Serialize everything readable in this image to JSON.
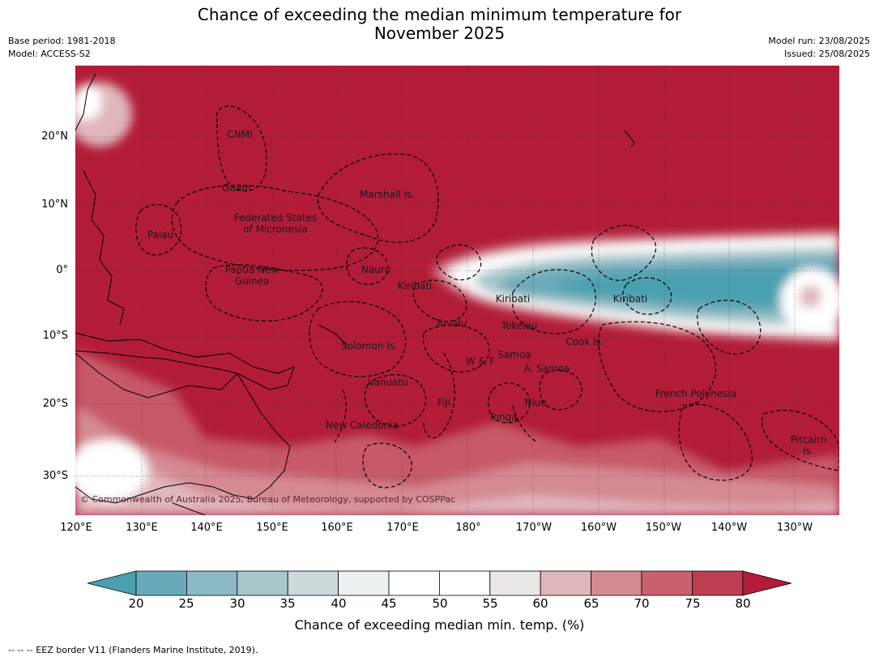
{
  "title_line1": "Chance of exceeding the median minimum temperature for",
  "title_line2": "November 2025",
  "meta_left": {
    "base_period": "Base period: 1981-2018",
    "model": "Model: ACCESS-S2"
  },
  "meta_right": {
    "model_run": "Model run: 23/08/2025",
    "issued": "Issued: 25/08/2025"
  },
  "lat_labels": [
    "20°N",
    "10°N",
    "0°",
    "10°S",
    "20°S",
    "30°S"
  ],
  "lon_labels": [
    "120°E",
    "130°E",
    "140°E",
    "150°E",
    "160°E",
    "170°E",
    "180°",
    "170°W",
    "160°W",
    "150°W",
    "140°W",
    "130°W"
  ],
  "places": {
    "cnmi": "CNMI",
    "guam": "Guam",
    "marshall": "Marshall Is.",
    "fsm_1": "Federated States",
    "fsm_2": "of Micronesia",
    "palau": "Palau",
    "nauru": "Nauru",
    "png_1": "Papua New",
    "png_2": "Guinea",
    "kiribati_w": "Kiribati",
    "kiribati_c": "Kiribati",
    "kiribati_e": "Kiribati",
    "tuvalu": "Tuvalu",
    "tokelau": "Tokelau",
    "cook": "Cook Is.",
    "solomon": "Solomon Is.",
    "wf": "W & F",
    "samoa": "Samoa",
    "asamoa": "A. Samoa",
    "vanuatu": "Vanuatu",
    "fiji": "Fiji",
    "niue": "Niue",
    "tonga": "Tonga",
    "french_polynesia": "French Polynesia",
    "new_caledonia": "New Caledonia",
    "pitcairn_1": "Pitcairn",
    "pitcairn_2": "Is."
  },
  "copyright": "© Commonwealth of Australia 2025, Bureau of Meteorology, supported by COSPPac",
  "colorbar": {
    "ticks": [
      "20",
      "25",
      "30",
      "35",
      "40",
      "45",
      "50",
      "55",
      "60",
      "65",
      "70",
      "75",
      "80"
    ],
    "colors": [
      "#4aa0b0",
      "#6aa9ba",
      "#8bb8c4",
      "#a9c6cb",
      "#cbd9da",
      "#ecf1f1",
      "#ffffff",
      "#ffffff",
      "#ebe7e8",
      "#e0b6bb",
      "#d58a93",
      "#c9616f",
      "#bd3e4f",
      "#b21c38"
    ],
    "label": "Chance of exceeding median min. temp. (%)"
  },
  "footer": "--  --  -- EEZ border V11 (Flanders Marine Institute, 2019)."
}
